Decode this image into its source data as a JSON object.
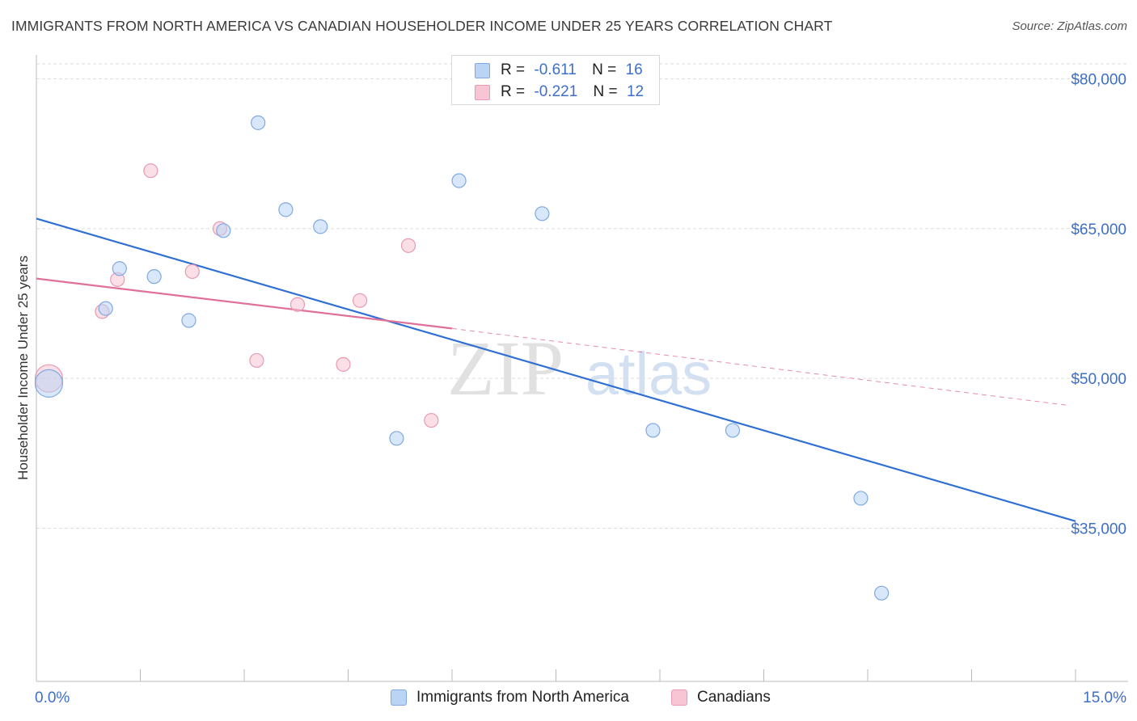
{
  "title": "IMMIGRANTS FROM NORTH AMERICA VS CANADIAN HOUSEHOLDER INCOME UNDER 25 YEARS CORRELATION CHART",
  "source": "Source: ZipAtlas.com",
  "watermark": {
    "zip": "ZIP",
    "atlas": "atlas"
  },
  "colors": {
    "blue_fill": "#b9d4f5",
    "blue_stroke": "#7fa9e0",
    "blue_line": "#2e6fd4",
    "pink_fill": "#f8c5d4",
    "pink_stroke": "#e89ab2",
    "pink_line": "#e0709a",
    "axis_label": "#3d6fc8",
    "grid": "#dddddd"
  },
  "legend": {
    "rows": [
      {
        "r_label": "R =",
        "r_value": "-0.611",
        "n_label": "N =",
        "n_value": "16"
      },
      {
        "r_label": "R =",
        "r_value": "-0.221",
        "n_label": "N =",
        "n_value": "12"
      }
    ]
  },
  "chart_data": {
    "type": "scatter",
    "title": "IMMIGRANTS FROM NORTH AMERICA VS CANADIAN HOUSEHOLDER INCOME UNDER 25 YEARS CORRELATION CHART",
    "xlabel": "",
    "ylabel": "Householder Income Under 25 years",
    "xlim": [
      0,
      15
    ],
    "ylim": [
      20000,
      83000
    ],
    "x_tick_labels": [
      "0.0%",
      "15.0%"
    ],
    "y_ticks": [
      35000,
      50000,
      65000,
      80000
    ],
    "y_tick_labels": [
      "$35,000",
      "$50,000",
      "$65,000",
      "$80,000"
    ],
    "grid": true,
    "series": [
      {
        "name": "Immigrants from North America",
        "points": [
          {
            "x": 0.18,
            "y": 49500,
            "large": true
          },
          {
            "x": 1.0,
            "y": 57000
          },
          {
            "x": 1.2,
            "y": 61000
          },
          {
            "x": 1.7,
            "y": 60200
          },
          {
            "x": 2.2,
            "y": 55800
          },
          {
            "x": 2.7,
            "y": 64800
          },
          {
            "x": 3.2,
            "y": 75600
          },
          {
            "x": 3.6,
            "y": 66900
          },
          {
            "x": 4.1,
            "y": 65200
          },
          {
            "x": 5.2,
            "y": 44000
          },
          {
            "x": 6.1,
            "y": 69800
          },
          {
            "x": 7.3,
            "y": 66500
          },
          {
            "x": 8.9,
            "y": 44800
          },
          {
            "x": 10.05,
            "y": 44800
          },
          {
            "x": 11.9,
            "y": 38000
          },
          {
            "x": 12.2,
            "y": 28500
          }
        ],
        "trend": {
          "x": [
            0.0,
            15.0
          ],
          "y": [
            66000,
            35700
          ]
        }
      },
      {
        "name": "Canadians",
        "points": [
          {
            "x": 0.18,
            "y": 50000,
            "large": true
          },
          {
            "x": 0.95,
            "y": 56700
          },
          {
            "x": 1.17,
            "y": 59900
          },
          {
            "x": 1.65,
            "y": 70800
          },
          {
            "x": 2.25,
            "y": 60700
          },
          {
            "x": 2.65,
            "y": 65000
          },
          {
            "x": 3.18,
            "y": 51800
          },
          {
            "x": 3.77,
            "y": 57400
          },
          {
            "x": 4.43,
            "y": 51400
          },
          {
            "x": 4.67,
            "y": 57800
          },
          {
            "x": 5.37,
            "y": 63300
          },
          {
            "x": 5.7,
            "y": 45800
          }
        ],
        "trend": {
          "x": [
            0.0,
            6.0
          ],
          "y": [
            60000,
            55000
          ],
          "dashed_to": {
            "x": 14.9,
            "y": 47300
          }
        }
      }
    ]
  }
}
